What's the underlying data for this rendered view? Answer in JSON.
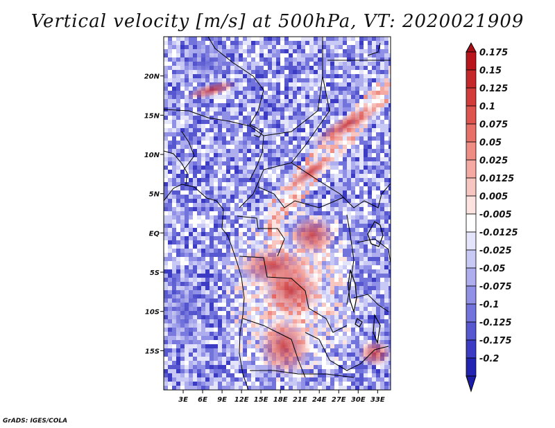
{
  "title": "Vertical velocity [m/s] at 500hPa, VT: 2020021909",
  "credit": "GrADS: IGES/COLA",
  "map": {
    "variable": "Vertical velocity",
    "units": "m/s",
    "level": "500hPa",
    "valid_time": "2020021909",
    "lon_range": [
      0,
      35
    ],
    "lat_range": [
      -20,
      25
    ],
    "x_ticks": [
      {
        "value": 3,
        "label": "3E"
      },
      {
        "value": 6,
        "label": "6E"
      },
      {
        "value": 9,
        "label": "9E"
      },
      {
        "value": 12,
        "label": "12E"
      },
      {
        "value": 15,
        "label": "15E"
      },
      {
        "value": 18,
        "label": "18E"
      },
      {
        "value": 21,
        "label": "21E"
      },
      {
        "value": 24,
        "label": "24E"
      },
      {
        "value": 27,
        "label": "27E"
      },
      {
        "value": 30,
        "label": "30E"
      },
      {
        "value": 33,
        "label": "33E"
      }
    ],
    "y_ticks": [
      {
        "value": 20,
        "label": "20N"
      },
      {
        "value": 15,
        "label": "15N"
      },
      {
        "value": 10,
        "label": "10N"
      },
      {
        "value": 5,
        "label": "5N"
      },
      {
        "value": 0,
        "label": "EQ"
      },
      {
        "value": -5,
        "label": "5S"
      },
      {
        "value": -10,
        "label": "10S"
      },
      {
        "value": -15,
        "label": "15S"
      }
    ]
  },
  "colorbar": {
    "levels": [
      {
        "label": "0.175",
        "color": "#b8161c"
      },
      {
        "label": "0.15",
        "color": "#c5282a"
      },
      {
        "label": "0.125",
        "color": "#d23c3a"
      },
      {
        "label": "0.1",
        "color": "#de5550"
      },
      {
        "label": "0.075",
        "color": "#e77168"
      },
      {
        "label": "0.05",
        "color": "#ee8d84"
      },
      {
        "label": "0.025",
        "color": "#f4aaa3"
      },
      {
        "label": "0.0125",
        "color": "#f8c6c0"
      },
      {
        "label": "0.005",
        "color": "#fce3df"
      },
      {
        "label": "-0.005",
        "color": "#ffffff"
      },
      {
        "label": "-0.0125",
        "color": "#e4e4fb"
      },
      {
        "label": "-0.025",
        "color": "#c9c9f5"
      },
      {
        "label": "-0.05",
        "color": "#aeaeef"
      },
      {
        "label": "-0.075",
        "color": "#9090e6"
      },
      {
        "label": "-0.1",
        "color": "#7373dc"
      },
      {
        "label": "-0.125",
        "color": "#5757d0"
      },
      {
        "label": "-0.175",
        "color": "#3b3bc3"
      },
      {
        "label": "-0.2",
        "color": "#2323b2"
      }
    ],
    "top_arrow_color": "#a50f15",
    "bottom_arrow_color": "#1c1ca6"
  }
}
